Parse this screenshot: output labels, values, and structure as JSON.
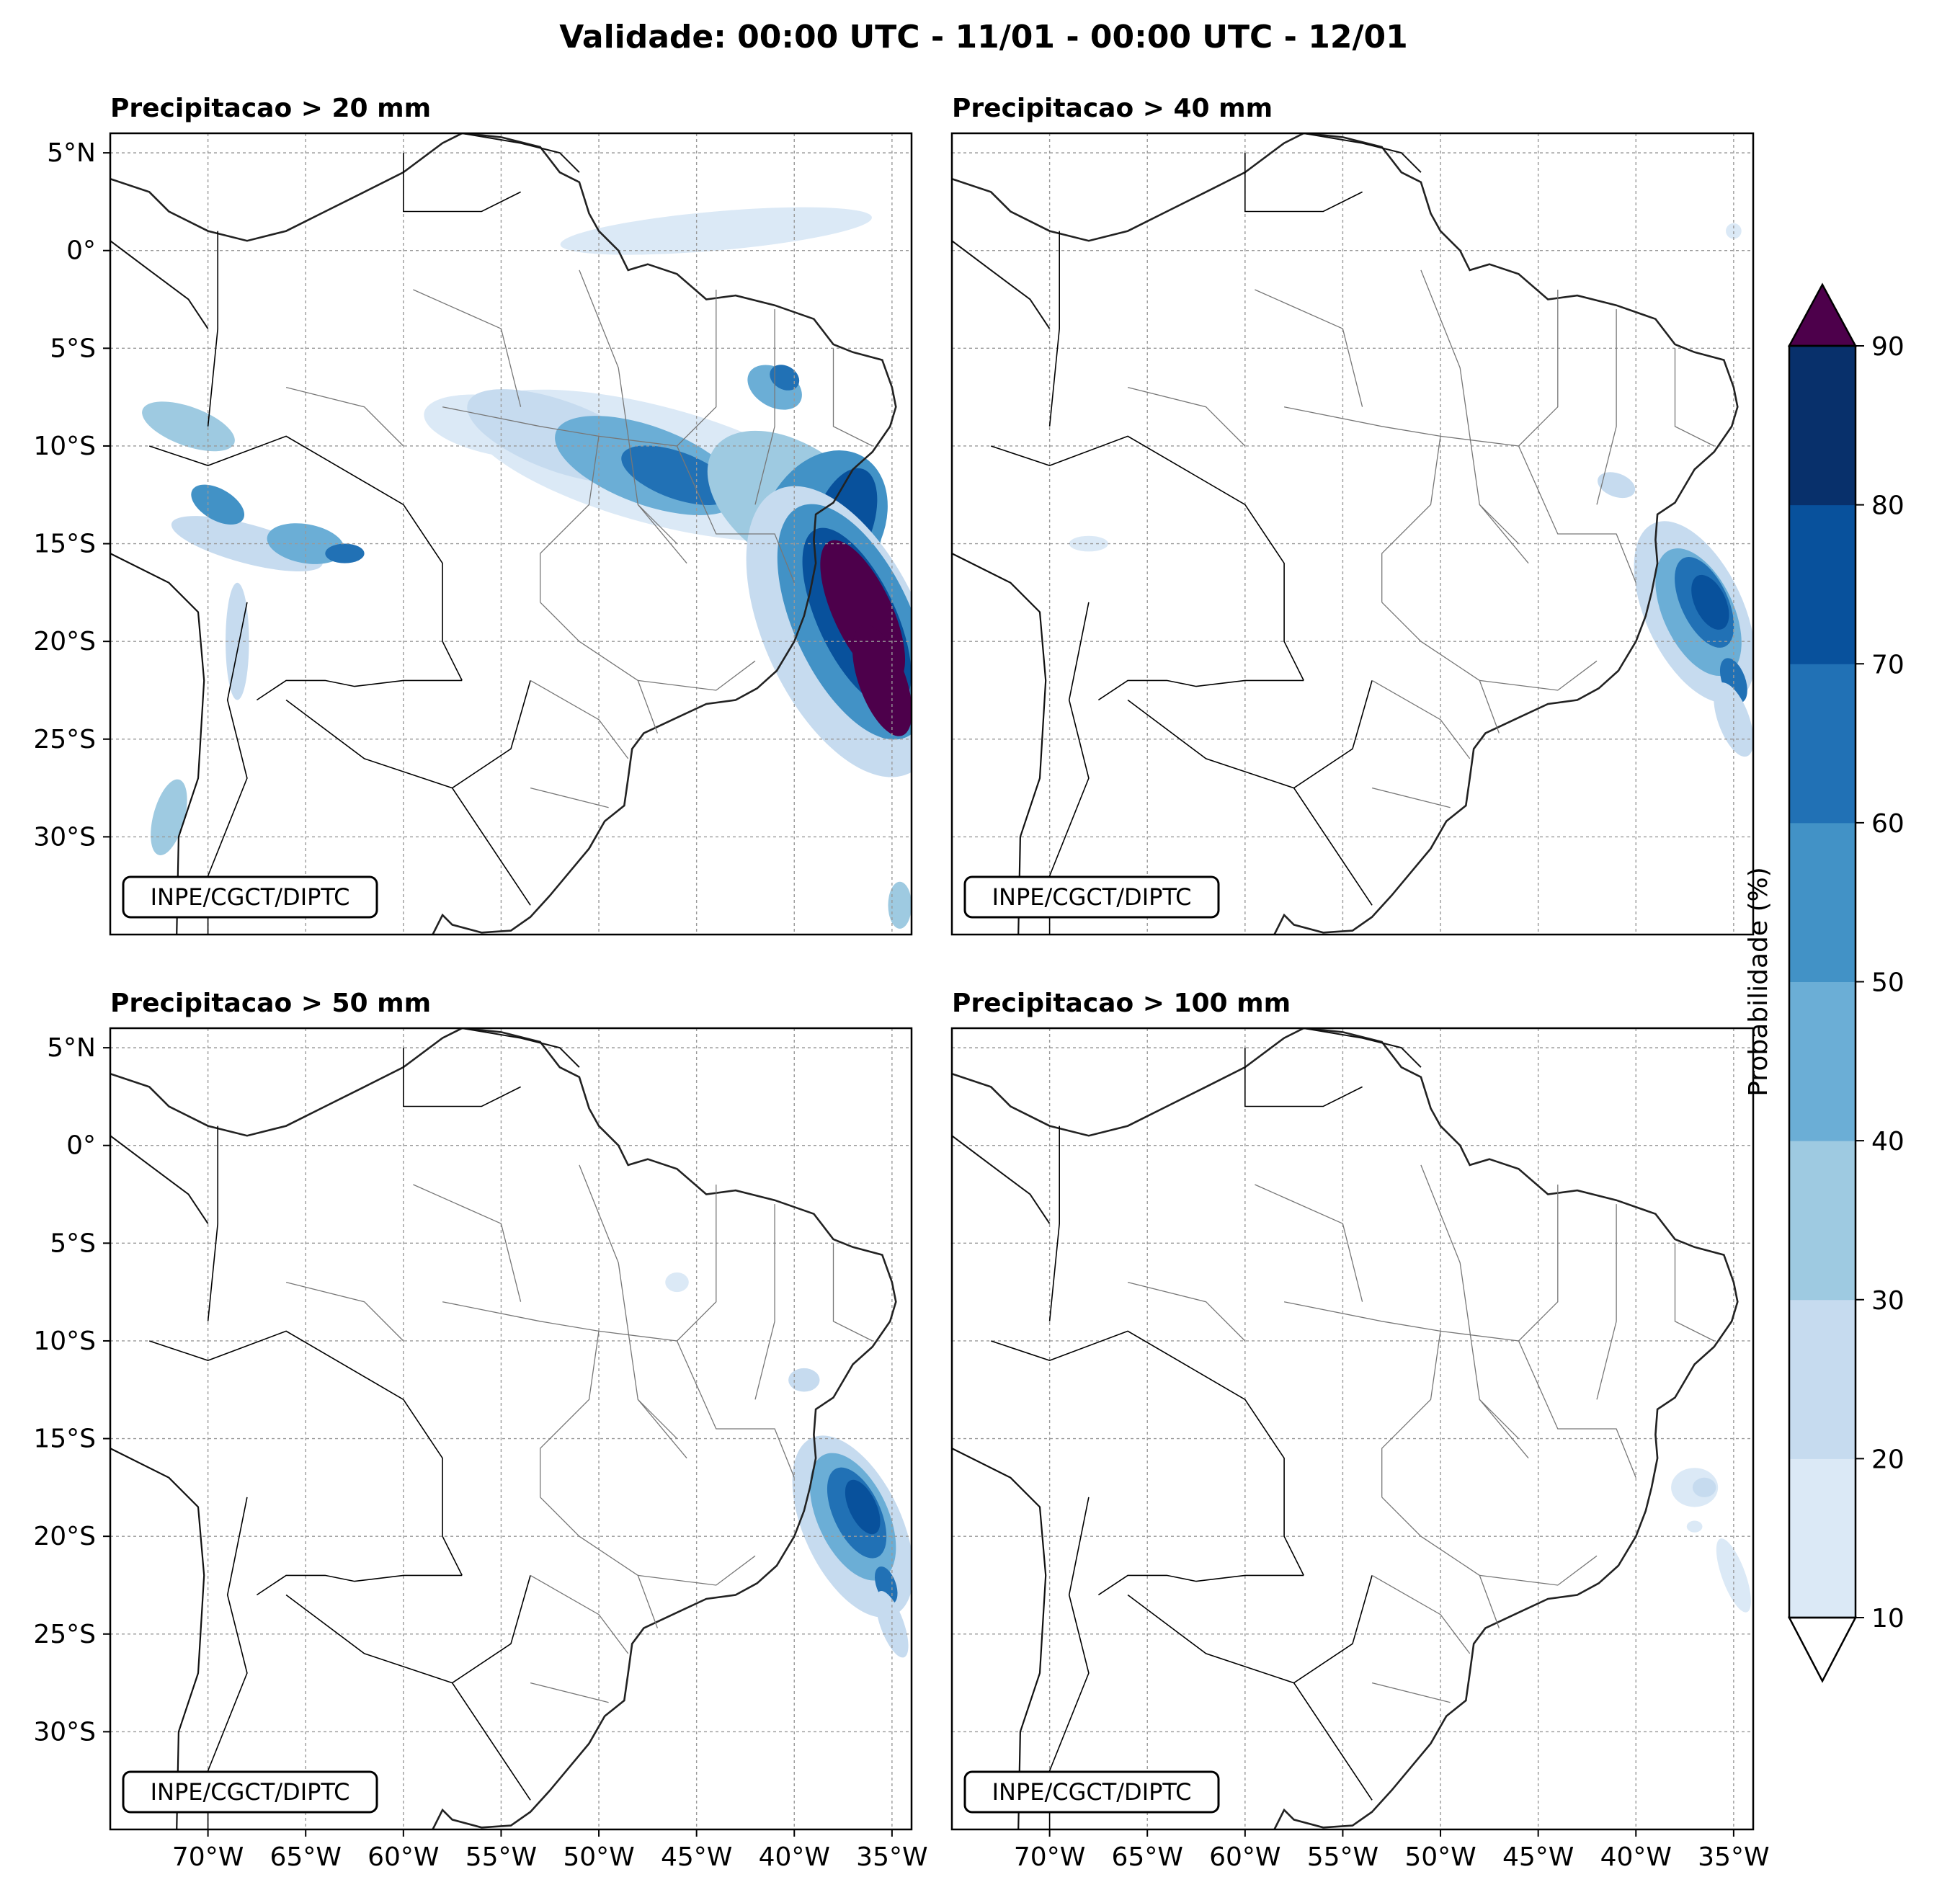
{
  "figure": {
    "title": "Validade: 00:00 UTC - 11/01 - 00:00 UTC - 12/01"
  },
  "panels": [
    {
      "title": "Precipitacao > 20 mm",
      "watermark": "INPE/CGCT/DIPTC"
    },
    {
      "title": "Precipitacao > 40 mm",
      "watermark": "INPE/CGCT/DIPTC"
    },
    {
      "title": "Precipitacao > 50 mm",
      "watermark": "INPE/CGCT/DIPTC"
    },
    {
      "title": "Precipitacao > 100 mm",
      "watermark": "INPE/CGCT/DIPTC"
    }
  ],
  "axes": {
    "lon_ticks": [
      "70°W",
      "65°W",
      "60°W",
      "55°W",
      "50°W",
      "45°W",
      "40°W",
      "35°W"
    ],
    "lat_ticks": [
      "5°N",
      "0°",
      "5°S",
      "10°S",
      "15°S",
      "20°S",
      "25°S",
      "30°S"
    ],
    "lon_range": [
      -75,
      -34
    ],
    "lat_range": [
      -35,
      6
    ]
  },
  "colorbar": {
    "label": "Probabilidade (%)",
    "ticks": [
      "10",
      "20",
      "30",
      "40",
      "50",
      "60",
      "70",
      "80",
      "90"
    ],
    "colors": [
      "#dbe9f6",
      "#c6dbef",
      "#9ecae1",
      "#6baed6",
      "#4292c6",
      "#2171b5",
      "#08519c",
      "#08306b"
    ],
    "over_color": "#4d004b",
    "under_color": "#ffffff"
  },
  "colors": {
    "p10": "#dbe9f6",
    "p20": "#c6dbef",
    "p30": "#9ecae1",
    "p40": "#6baed6",
    "p50": "#4292c6",
    "p60": "#2171b5",
    "p70": "#08519c",
    "p80": "#08306b",
    "p90": "#4d004b"
  }
}
